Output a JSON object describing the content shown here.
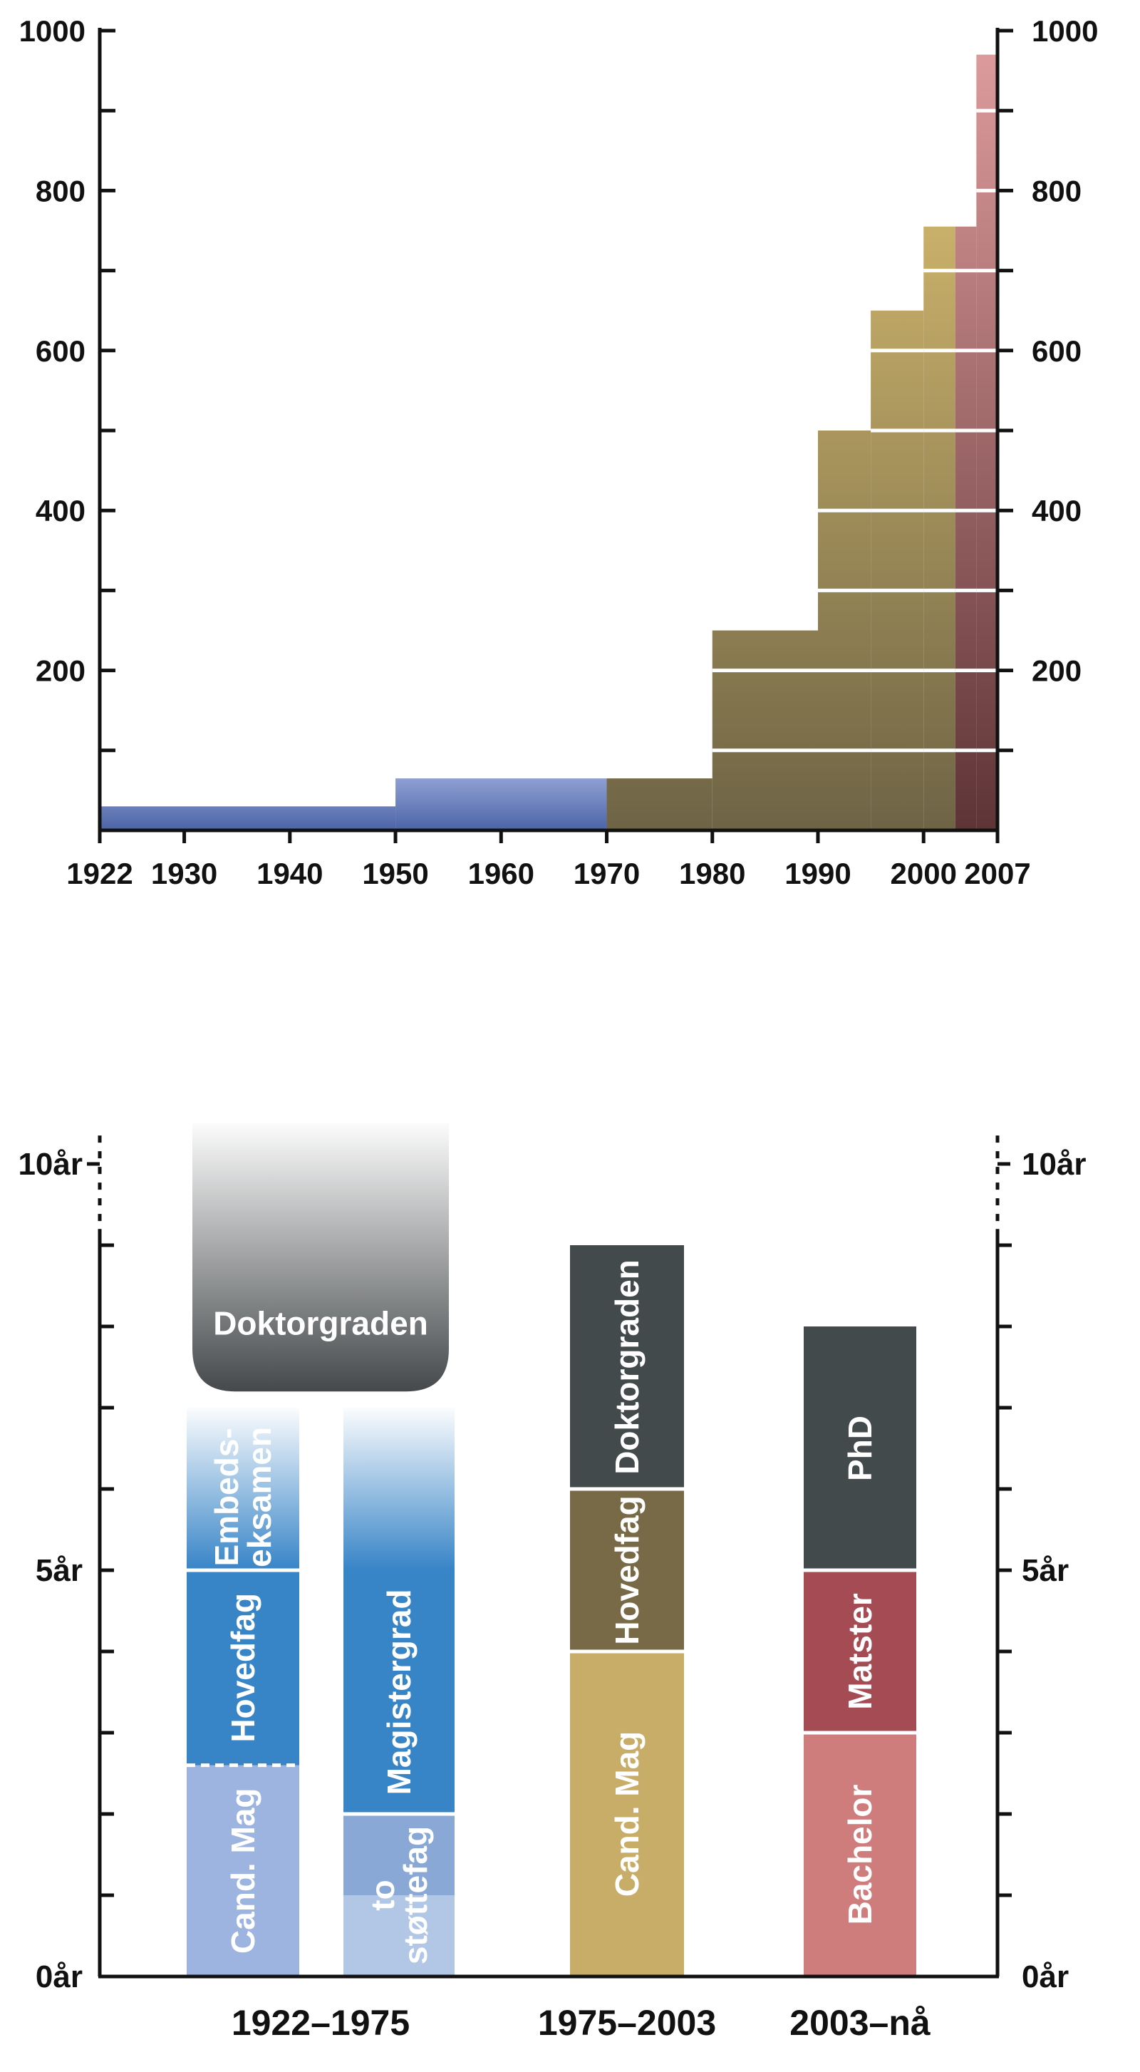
{
  "chart_data": [
    {
      "type": "area",
      "title": "",
      "xlabel": "",
      "ylabel": "",
      "xlim": [
        1922,
        2007
      ],
      "ylim": [
        0,
        1000
      ],
      "x_ticks": [
        "1922",
        "1930",
        "1940",
        "1950",
        "1960",
        "1970",
        "1980",
        "1990",
        "2000",
        "2007"
      ],
      "x_tick_values": [
        1922,
        1930,
        1940,
        1950,
        1960,
        1970,
        1980,
        1990,
        2000,
        2007
      ],
      "y_ticks_left": [
        "200",
        "400",
        "600",
        "800",
        "1000"
      ],
      "y_ticks_right": [
        "200",
        "400",
        "600",
        "800",
        "1000"
      ],
      "y_tick_values": [
        200,
        400,
        600,
        800,
        1000
      ],
      "y_minor_step": 100,
      "grid_lines_in_fill": [
        100,
        200,
        300,
        400,
        500,
        600,
        700,
        800,
        900
      ],
      "grid": false,
      "legend": "none",
      "series": [
        {
          "period": "1922–1975",
          "color_top": "#8f9fd3",
          "color_bottom": "#4b64a6",
          "steps": [
            {
              "x0": 1922,
              "x1": 1950,
              "y": 30
            },
            {
              "x0": 1950,
              "x1": 1970,
              "y": 65
            }
          ]
        },
        {
          "period": "1975–2003",
          "color_top": "#c9b06a",
          "color_bottom": "#6e6445",
          "steps": [
            {
              "x0": 1970,
              "x1": 1980,
              "y": 65
            },
            {
              "x0": 1980,
              "x1": 1990,
              "y": 250
            },
            {
              "x0": 1990,
              "x1": 1995,
              "y": 500
            },
            {
              "x0": 1995,
              "x1": 2000,
              "y": 650
            },
            {
              "x0": 2000,
              "x1": 2003,
              "y": 755
            }
          ]
        },
        {
          "period": "2003–nå",
          "color_top": "#dc9a9b",
          "color_bottom": "#5e3436",
          "steps": [
            {
              "x0": 2003,
              "x1": 2005,
              "y": 755
            },
            {
              "x0": 2005,
              "x1": 2007,
              "y": 970
            }
          ]
        }
      ]
    },
    {
      "type": "bar",
      "title": "",
      "xlabel": "",
      "ylabel": "",
      "ylim": [
        0,
        10
      ],
      "y_ticks": [
        "0år",
        "5år",
        "10år"
      ],
      "y_tick_values": [
        0,
        5,
        10
      ],
      "y_minor_step": 1,
      "grid": false,
      "legend": "none",
      "categories": [
        "1922–1975",
        "1975–2003",
        "2003–nå"
      ],
      "columns": [
        {
          "group": 0,
          "segments": [
            {
              "label": "Cand. Mag",
              "y0": 0,
              "y1": 2.6,
              "color": "#9cb4df"
            },
            {
              "label": "Hovedfag",
              "y0": 2.6,
              "y1": 5,
              "color": "#3784c7"
            },
            {
              "label": "Embeds-\neksamen",
              "y0": 5,
              "y1": 7,
              "color": "#3784c7",
              "fade_top": true
            }
          ],
          "dashed_boundary": 2.6
        },
        {
          "group": 0,
          "segments": [
            {
              "label": "to\nstøttefag",
              "y0": 0,
              "y1": 2,
              "color": "#8aa8d6",
              "light_bottom_to": 1
            },
            {
              "label": "Magistergrad",
              "y0": 2,
              "y1": 5,
              "color": "#3784c7"
            },
            {
              "label": "",
              "y0": 5,
              "y1": 7,
              "color": "#3784c7",
              "fade_top": true
            }
          ]
        },
        {
          "group": 0,
          "span_both_group_columns": true,
          "segments": [
            {
              "label": "Doktorgraden",
              "y0": 7.2,
              "y1": 10.5,
              "color": "#45494b",
              "fade_top": true,
              "rounded_bottom": true
            }
          ]
        },
        {
          "group": 1,
          "segments": [
            {
              "label": "Cand. Mag",
              "y0": 0,
              "y1": 4,
              "color": "#c8ad68"
            },
            {
              "label": "Hovedfag",
              "y0": 4,
              "y1": 6,
              "color": "#786a46"
            },
            {
              "label": "Doktorgraden",
              "y0": 6,
              "y1": 9,
              "color": "#434a4c"
            }
          ]
        },
        {
          "group": 2,
          "segments": [
            {
              "label": "Bachelor",
              "y0": 0,
              "y1": 3,
              "color": "#cf7d7c"
            },
            {
              "label": "Matster",
              "y0": 3,
              "y1": 5,
              "color": "#a44b53"
            },
            {
              "label": "PhD",
              "y0": 5,
              "y1": 8,
              "color": "#434a4c"
            }
          ]
        }
      ]
    }
  ]
}
